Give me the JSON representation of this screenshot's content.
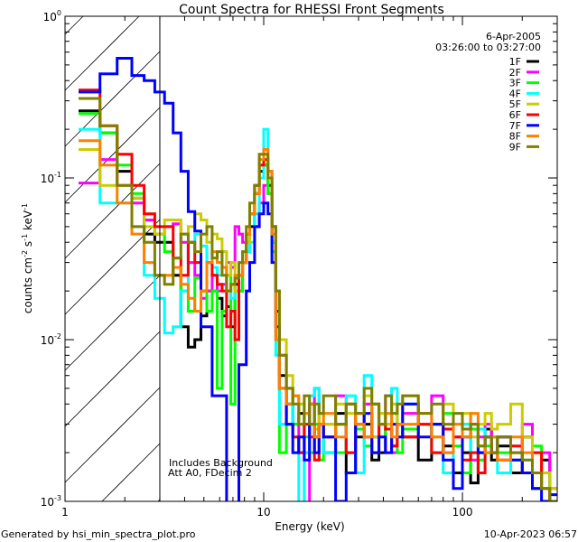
{
  "chart_data": {
    "type": "line",
    "title": "Count Spectra for RHESSI Front Segments",
    "xlabel": "Energy (keV)",
    "ylabel": {
      "base": "counts cm",
      "e1": "-2",
      "mid1": " s",
      "e2": "-1",
      "mid2": " keV",
      "e3": "-1"
    },
    "xscale": "log",
    "yscale": "log",
    "xlim": [
      1,
      300
    ],
    "ylim": [
      0.001,
      1
    ],
    "x_ticks": [
      {
        "value": 1,
        "label": "1"
      },
      {
        "value": 10,
        "label": "10"
      },
      {
        "value": 100,
        "label": "100"
      }
    ],
    "y_ticks": [
      {
        "value": 1,
        "base": "10",
        "exp": "0"
      },
      {
        "value": 0.1,
        "base": "10",
        "exp": "-1"
      },
      {
        "value": 0.01,
        "base": "10",
        "exp": "-2"
      },
      {
        "value": 0.001,
        "base": "10",
        "exp": "-3"
      }
    ],
    "hatched_region_keV": [
      1,
      3
    ],
    "date": "6-Apr-2005",
    "time_range": "03:26:00 to 03:27:00",
    "annotations": [
      "Includes Background",
      "Att A0, FDecim 2"
    ],
    "legend_position": "top-right",
    "energy_edges": [
      1.17,
      1.5,
      1.83,
      2.17,
      2.5,
      2.83,
      3.17,
      3.5,
      3.83,
      4.17,
      4.5,
      4.83,
      5.17,
      5.5,
      5.83,
      6.17,
      6.5,
      6.83,
      7.17,
      7.5,
      7.83,
      8.17,
      8.5,
      9,
      9.5,
      10,
      10.5,
      11,
      11.5,
      12,
      13,
      14,
      15,
      16,
      17,
      18,
      19,
      20,
      23,
      26,
      29,
      32,
      35,
      38,
      41,
      44,
      47,
      50,
      60,
      70,
      80,
      90,
      100,
      110,
      120,
      130,
      140,
      150,
      175,
      200,
      225,
      250,
      275,
      300
    ],
    "series": [
      {
        "name": "1F",
        "color": "#000000",
        "values": [
          0.26,
          0.19,
          0.11,
          0.075,
          0.045,
          0.04,
          0.04,
          0.025,
          0.012,
          0.009,
          0.01,
          0.014,
          0.02,
          0.02,
          0.018,
          0.014,
          0.016,
          0.012,
          0.022,
          0.02,
          0.03,
          0.04,
          0.05,
          0.09,
          0.11,
          0.12,
          0.09,
          0.04,
          0.015,
          0.006,
          0.004,
          0.003,
          0.0035,
          0.002,
          0.003,
          0.0025,
          0.003,
          0.002,
          0.0035,
          0.0015,
          0.0025,
          0.003,
          0.0018,
          0.002,
          0.0028,
          0.0022,
          0.003,
          0.0025,
          0.0018,
          0.003,
          0.0022,
          0.0015,
          0.002,
          0.0013,
          0.002,
          0.0028,
          0.0018,
          0.0022,
          0.0015,
          0.0025,
          0.0012,
          0.0018,
          0.001
        ]
      },
      {
        "name": "2F",
        "color": "#ff00ff",
        "values": [
          0.093,
          0.13,
          0.09,
          0.07,
          0.055,
          0.045,
          0.05,
          0.052,
          0.04,
          0.03,
          0.025,
          0.018,
          0.02,
          0.025,
          0.02,
          0.022,
          0.03,
          0.028,
          0.05,
          0.045,
          0.04,
          0.045,
          0.06,
          0.05,
          0.07,
          0.09,
          0.08,
          0.05,
          0.02,
          0.008,
          0.005,
          0.003,
          0.002,
          0,
          0.004,
          0.005,
          0.003,
          0.0025,
          0.0045,
          0.002,
          0.003,
          0.004,
          0.0025,
          0.003,
          0.0045,
          0.002,
          0.003,
          0.0035,
          0.003,
          0.0045,
          0.002,
          0.0025,
          0.003,
          0.0018,
          0.0025,
          0.003,
          0.002,
          0.0025,
          0.002,
          0.003,
          0.0015,
          0.002,
          0.0012
        ]
      },
      {
        "name": "3F",
        "color": "#00ff00",
        "values": [
          0.25,
          0.19,
          0.12,
          0.08,
          0.06,
          0.045,
          0.035,
          0.028,
          0.02,
          0.015,
          0.024,
          0.02,
          0.015,
          0.02,
          0.005,
          0.015,
          0.025,
          0.004,
          0.02,
          0.02,
          0.035,
          0.04,
          0.06,
          0.08,
          0.1,
          0.12,
          0.08,
          0.035,
          0.01,
          0.002,
          0.005,
          0.003,
          0.004,
          0.0025,
          0.002,
          0.003,
          0.0018,
          0.003,
          0.002,
          0.004,
          0.0028,
          0.0022,
          0.004,
          0.0025,
          0.003,
          0.0035,
          0.002,
          0.0028,
          0.003,
          0.002,
          0.0035,
          0.0022,
          0.0015,
          0.0028,
          0.0018,
          0.0022,
          0.0025,
          0.002,
          0.0018,
          0.0015,
          0.0022,
          0.0012,
          0.001
        ]
      },
      {
        "name": "4F",
        "color": "#00ffff",
        "values": [
          0.2,
          0.07,
          0.07,
          0.05,
          0.025,
          0.018,
          0.011,
          0.012,
          0.02,
          0.04,
          0.045,
          0.038,
          0.03,
          0.028,
          0.025,
          0.035,
          0.02,
          0.018,
          0.02,
          0.025,
          0.03,
          0.035,
          0.04,
          0.06,
          0.1,
          0.2,
          0.1,
          0.04,
          0.008,
          0.003,
          0.004,
          0.0025,
          0,
          0.002,
          0.0045,
          0.005,
          0.003,
          0.002,
          0.003,
          0.0045,
          0.0015,
          0.006,
          0.002,
          0.0035,
          0.003,
          0.005,
          0.0025,
          0.004,
          0.003,
          0.002,
          0.0015,
          0.0035,
          0.003,
          0.002,
          0.0028,
          0.002,
          0.0025,
          0.0015,
          0.0022,
          0.0018,
          0.0012,
          0.0015,
          0.001
        ]
      },
      {
        "name": "5F",
        "color": "#cccc00",
        "values": [
          0.15,
          0.09,
          0.09,
          0.075,
          0.05,
          0.045,
          0.055,
          0.055,
          0.045,
          0.05,
          0.06,
          0.055,
          0.04,
          0.045,
          0.042,
          0.035,
          0.025,
          0.03,
          0.02,
          0.025,
          0.03,
          0.04,
          0.06,
          0.08,
          0.12,
          0.15,
          0.1,
          0.05,
          0.02,
          0.01,
          0.006,
          0.0045,
          0.004,
          0.0035,
          0.004,
          0.0028,
          0.0035,
          0.003,
          0.004,
          0.0035,
          0.003,
          0.0045,
          0.0025,
          0.0035,
          0.003,
          0.004,
          0.003,
          0.0045,
          0.003,
          0.0025,
          0.004,
          0.003,
          0.0035,
          0.0025,
          0.003,
          0.0035,
          0.0028,
          0.003,
          0.004,
          0.0025,
          0.002,
          0.0015,
          0.0012
        ]
      },
      {
        "name": "6F",
        "color": "#ff0000",
        "values": [
          0.35,
          0.21,
          0.14,
          0.09,
          0.06,
          0.05,
          0.05,
          0.032,
          0.025,
          0.04,
          0.03,
          0.02,
          0.03,
          0.025,
          0.022,
          0.02,
          0.012,
          0.015,
          0.01,
          0.025,
          0.03,
          0.045,
          0.06,
          0.08,
          0.12,
          0.13,
          0.11,
          0.05,
          0.01,
          0.005,
          0.003,
          0.0025,
          0.002,
          0.003,
          0.0025,
          0.0018,
          0.003,
          0.0025,
          0.003,
          0.002,
          0.0035,
          0.0025,
          0.002,
          0.003,
          0.0028,
          0.0022,
          0.003,
          0.0025,
          0.003,
          0.002,
          0.0028,
          0.0025,
          0.0018,
          0.002,
          0.0015,
          0.0025,
          0.002,
          0.0018,
          0.0022,
          0.0015,
          0.002,
          0.0012,
          0.001
        ]
      },
      {
        "name": "7F",
        "color": "#0000ff",
        "values": [
          0.34,
          0.44,
          0.55,
          0.43,
          0.4,
          0.34,
          0.29,
          0.19,
          0.11,
          0.062,
          0.047,
          0.012,
          0.012,
          0.0045,
          0.0045,
          0.0045,
          0,
          0,
          0,
          0.007,
          0.007,
          0.02,
          0.03,
          0.05,
          0.06,
          0.07,
          0.06,
          0.03,
          0.012,
          0.005,
          0.003,
          0.002,
          0.0025,
          0.0018,
          0.004,
          0.002,
          0.003,
          0.0025,
          0.001,
          0.0015,
          0.003,
          0.0035,
          0.002,
          0.0025,
          0.002,
          0.003,
          0.0025,
          0.004,
          0.0025,
          0.003,
          0.0018,
          0.0012,
          0.0025,
          0.003,
          0.002,
          0.0025,
          0.002,
          0.0025,
          0.0018,
          0.0015,
          0.0012,
          0.001,
          0.0011
        ]
      },
      {
        "name": "8F",
        "color": "#ff8000",
        "values": [
          0.17,
          0.12,
          0.07,
          0.045,
          0.03,
          0.025,
          0.025,
          0.028,
          0.022,
          0.018,
          0.015,
          0.02,
          0.03,
          0.035,
          0.03,
          0.028,
          0.02,
          0.022,
          0.025,
          0.025,
          0.03,
          0.045,
          0.06,
          0.08,
          0.13,
          0.15,
          0.11,
          0.045,
          0.01,
          0.005,
          0.004,
          0.0045,
          0.003,
          0.0035,
          0.004,
          0.0025,
          0.003,
          0.0035,
          0.0025,
          0.004,
          0.003,
          0.0025,
          0.004,
          0.003,
          0.0035,
          0.0025,
          0.003,
          0.003,
          0.0035,
          0.0025,
          0.002,
          0.003,
          0.0025,
          0.0035,
          0.0022,
          0.002,
          0.0025,
          0.0018,
          0.0025,
          0.002,
          0.0015,
          0.0012,
          0.001
        ]
      },
      {
        "name": "9F",
        "color": "#808000",
        "values": [
          0.31,
          0.21,
          0.09,
          0.05,
          0.04,
          0.025,
          0.022,
          0.032,
          0.045,
          0.04,
          0.035,
          0.045,
          0.05,
          0.032,
          0.035,
          0.025,
          0.02,
          0.022,
          0.024,
          0.03,
          0.035,
          0.05,
          0.07,
          0.09,
          0.14,
          0.14,
          0.1,
          0.05,
          0.02,
          0.008,
          0.005,
          0.004,
          0.003,
          0.0045,
          0.003,
          0.004,
          0.0035,
          0.0045,
          0.003,
          0.004,
          0.0035,
          0.005,
          0.004,
          0.003,
          0.0045,
          0.0035,
          0.004,
          0.0045,
          0.0035,
          0.004,
          0.003,
          0.0035,
          0.0028,
          0.003,
          0.0022,
          0.0025,
          0.002,
          0.0025,
          0.002,
          0.0018,
          0.0015,
          0.0012,
          0.001
        ]
      }
    ]
  },
  "footer": {
    "generated_by": "Generated by hsi_min_spectra_plot.pro",
    "timestamp": "10-Apr-2023 06:57"
  }
}
